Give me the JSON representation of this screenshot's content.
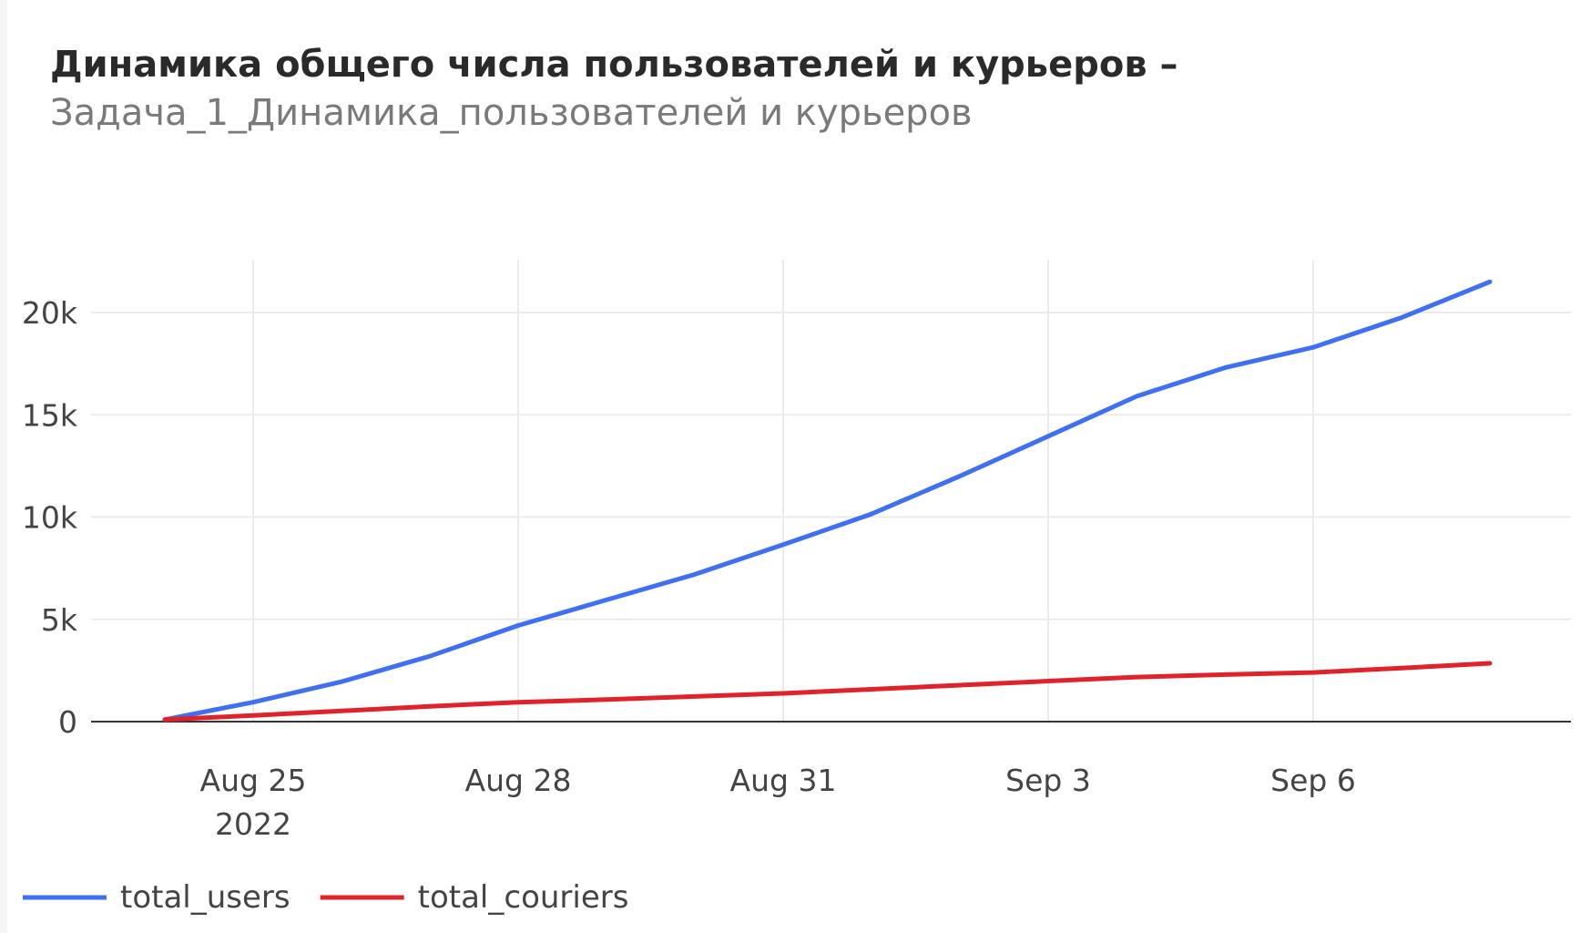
{
  "title": "Динамика общего числа пользователей и курьеров –",
  "subtitle": "Задача_1_Динамика_пользователей и курьеров",
  "chart_data": {
    "type": "line",
    "x": [
      "2022-08-24",
      "2022-08-25",
      "2022-08-26",
      "2022-08-27",
      "2022-08-28",
      "2022-08-29",
      "2022-08-30",
      "2022-08-31",
      "2022-09-01",
      "2022-09-02",
      "2022-09-03",
      "2022-09-04",
      "2022-09-05",
      "2022-09-06",
      "2022-09-07",
      "2022-09-08"
    ],
    "series": [
      {
        "name": "total_users",
        "color": "#3f6ff2",
        "values": [
          100,
          950,
          1950,
          3200,
          4700,
          5950,
          7200,
          8650,
          10150,
          12000,
          13950,
          15900,
          17300,
          18300,
          19750,
          21500
        ]
      },
      {
        "name": "total_couriers",
        "color": "#e0232b",
        "values": [
          100,
          300,
          520,
          750,
          950,
          1080,
          1230,
          1380,
          1580,
          1780,
          1980,
          2180,
          2300,
          2400,
          2620,
          2850
        ]
      }
    ],
    "ylim": [
      0,
      22500
    ],
    "yticks": [
      0,
      5000,
      10000,
      15000,
      20000
    ],
    "ytick_labels": [
      "0",
      "5k",
      "10k",
      "15k",
      "20k"
    ],
    "xticks": [
      "2022-08-25",
      "2022-08-28",
      "2022-08-31",
      "2022-09-03",
      "2022-09-06"
    ],
    "xtick_labels": [
      "Aug 25",
      "Aug 28",
      "Aug 31",
      "Sep 3",
      "Sep 6"
    ],
    "xtick_year": "2022",
    "grid": true,
    "legend": "bottom-left"
  }
}
